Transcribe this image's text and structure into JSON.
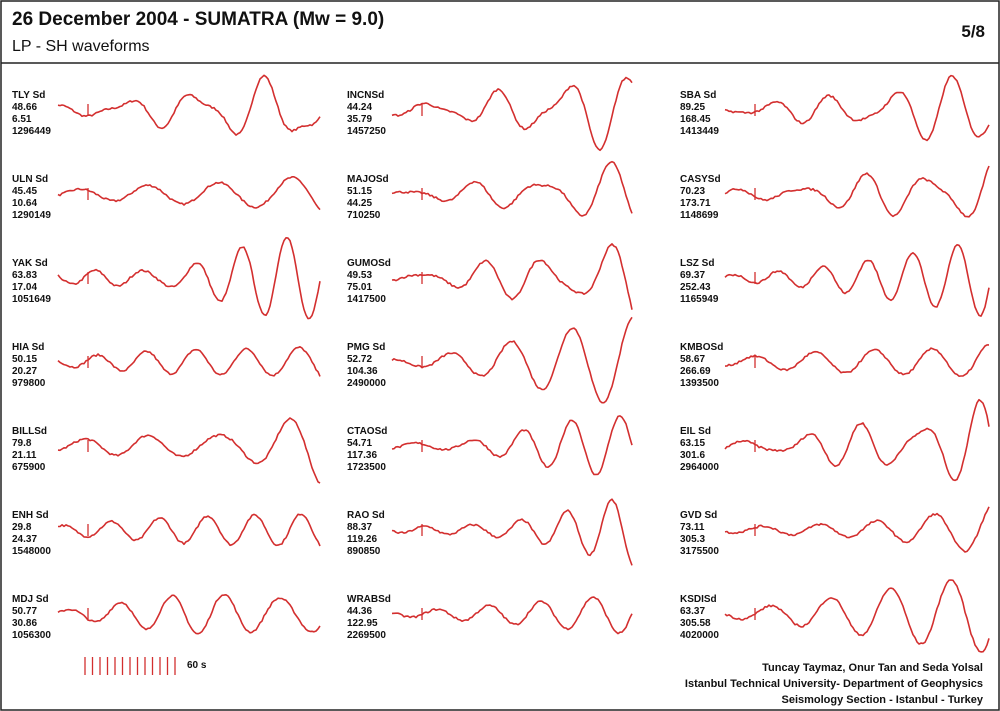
{
  "header": {
    "title": "26 December 2004 - SUMATRA (Mw = 9.0)",
    "subtitle": "LP - SH waveforms",
    "page": "5/8"
  },
  "columns": [
    [
      {
        "station": "TLY Sd",
        "values": [
          48.66,
          6.51,
          1296449
        ]
      },
      {
        "station": "ULN Sd",
        "values": [
          45.45,
          10.64,
          1290149
        ]
      },
      {
        "station": "YAK Sd",
        "values": [
          63.83,
          17.04,
          1051649
        ]
      },
      {
        "station": "HIA Sd",
        "values": [
          50.15,
          20.27,
          979800
        ]
      },
      {
        "station": "BILLSd",
        "values": [
          79.8,
          21.11,
          675900
        ]
      },
      {
        "station": "ENH Sd",
        "values": [
          29.8,
          24.37,
          1548000
        ]
      },
      {
        "station": "MDJ Sd",
        "values": [
          50.77,
          30.86,
          1056300
        ]
      }
    ],
    [
      {
        "station": "INCNSd",
        "values": [
          44.24,
          35.79,
          1457250
        ]
      },
      {
        "station": "MAJOSd",
        "values": [
          51.15,
          44.25,
          710250
        ]
      },
      {
        "station": "GUMOSd",
        "values": [
          49.53,
          75.01,
          1417500
        ]
      },
      {
        "station": "PMG Sd",
        "values": [
          52.72,
          104.36,
          2490000
        ]
      },
      {
        "station": "CTAOSd",
        "values": [
          54.71,
          117.36,
          1723500
        ]
      },
      {
        "station": "RAO Sd",
        "values": [
          88.37,
          119.26,
          890850
        ]
      },
      {
        "station": "WRABSd",
        "values": [
          44.36,
          122.95,
          2269500
        ]
      }
    ],
    [
      {
        "station": "SBA Sd",
        "values": [
          89.25,
          168.45,
          1413449
        ]
      },
      {
        "station": "CASYSd",
        "values": [
          70.23,
          173.71,
          1148699
        ]
      },
      {
        "station": "LSZ Sd",
        "values": [
          69.37,
          252.43,
          1165949
        ]
      },
      {
        "station": "KMBOSd",
        "values": [
          58.67,
          266.69,
          1393500
        ]
      },
      {
        "station": "EIL Sd",
        "values": [
          63.15,
          301.6,
          2964000
        ]
      },
      {
        "station": "GVD Sd",
        "values": [
          73.11,
          305.3,
          3175500
        ]
      },
      {
        "station": "KSDISd",
        "values": [
          63.37,
          305.58,
          4020000
        ]
      }
    ]
  ],
  "scale_label": "60 s",
  "credits": [
    "Tuncay Taymaz, Onur Tan and Seda Yolsal",
    "Istanbul Technical University- Department of Geophysics",
    "Seismology Section - Istanbul - Turkey"
  ]
}
